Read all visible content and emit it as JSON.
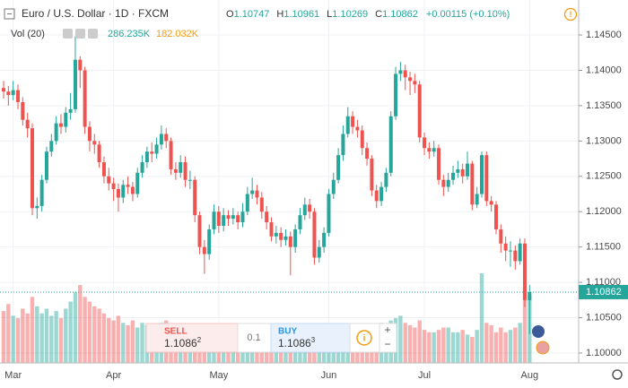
{
  "header": {
    "symbol": "Euro / U.S. Dollar · 1D · FXCM",
    "ohlc_prefixes": [
      "O",
      "H",
      "L",
      "C"
    ],
    "change": "+0.00115 (+0.10%)",
    "volume_title": "Vol (20)",
    "volume_label": "286.235K",
    "volume_ma_label": "182.032K"
  },
  "trade_panel": {
    "sell": "SELL",
    "sell_price": "1.1086",
    "sell_sup": "2",
    "spread": "0.1",
    "buy": "BUY",
    "buy_price": "1.1086",
    "buy_sup": "3"
  },
  "chart_data": {
    "type": "candlestick",
    "up_color": "#26a69a",
    "down_color": "#ef5350",
    "grid": true,
    "categories": [
      null,
      null,
      "Mar",
      null,
      null,
      null,
      null,
      null,
      null,
      null,
      null,
      null,
      null,
      null,
      null,
      null,
      null,
      null,
      null,
      null,
      null,
      null,
      null,
      "Apr",
      null,
      null,
      null,
      null,
      null,
      null,
      null,
      null,
      null,
      null,
      null,
      null,
      null,
      null,
      null,
      null,
      null,
      null,
      null,
      null,
      null,
      "May",
      null,
      null,
      null,
      null,
      null,
      null,
      null,
      null,
      null,
      null,
      null,
      null,
      null,
      null,
      null,
      null,
      null,
      null,
      null,
      null,
      null,
      null,
      "Jun",
      null,
      null,
      null,
      null,
      null,
      null,
      null,
      null,
      null,
      null,
      null,
      null,
      null,
      null,
      null,
      null,
      null,
      null,
      null,
      "Jul",
      null,
      null,
      null,
      null,
      null,
      null,
      null,
      null,
      null,
      null,
      null,
      null,
      null,
      null,
      null,
      null,
      null,
      null,
      null,
      null,
      null,
      "Aug"
    ],
    "open": [
      1.1375,
      1.137,
      1.1365,
      1.1372,
      1.1355,
      1.133,
      1.1318,
      1.1205,
      1.1208,
      1.1245,
      1.1285,
      1.13,
      1.1325,
      1.132,
      1.134,
      1.1345,
      1.1415,
      1.14,
      1.132,
      1.13,
      1.1295,
      1.127,
      1.125,
      1.124,
      1.1232,
      1.122,
      1.1238,
      1.1235,
      1.1225,
      1.1255,
      1.127,
      1.1285,
      1.1282,
      1.1295,
      1.131,
      1.13,
      1.126,
      1.1255,
      1.127,
      1.1245,
      1.1245,
      1.1195,
      1.115,
      1.114,
      1.1175,
      1.12,
      1.118,
      1.1195,
      1.119,
      1.1195,
      1.1185,
      1.12,
      1.1225,
      1.123,
      1.122,
      1.12,
      1.1185,
      1.1165,
      1.117,
      1.116,
      1.1165,
      1.115,
      1.1175,
      1.1195,
      1.121,
      1.12,
      1.1135,
      1.115,
      1.117,
      1.1225,
      1.1245,
      1.128,
      1.131,
      1.1335,
      1.132,
      1.1315,
      1.129,
      1.1275,
      1.123,
      1.1215,
      1.1235,
      1.1255,
      1.1335,
      1.1395,
      1.14,
      1.139,
      1.1385,
      1.138,
      1.1305,
      1.129,
      1.1285,
      1.129,
      1.1245,
      1.1235,
      1.1245,
      1.1255,
      1.126,
      1.125,
      1.1268,
      1.121,
      1.1225,
      1.128,
      1.1215,
      1.121,
      1.1175,
      1.1155,
      1.1145,
      1.1145,
      1.113,
      1.1155,
      1.10747
    ],
    "high": [
      1.1385,
      1.1378,
      1.1385,
      1.138,
      1.1362,
      1.134,
      1.1325,
      1.122,
      1.1252,
      1.1292,
      1.131,
      1.1335,
      1.1338,
      1.1348,
      1.1368,
      1.1448,
      1.142,
      1.1405,
      1.1328,
      1.131,
      1.13,
      1.1278,
      1.1262,
      1.1248,
      1.124,
      1.1245,
      1.125,
      1.1242,
      1.1262,
      1.128,
      1.1292,
      1.1298,
      1.1305,
      1.1322,
      1.1318,
      1.1305,
      1.127,
      1.128,
      1.1278,
      1.1258,
      1.125,
      1.12,
      1.116,
      1.1182,
      1.121,
      1.1208,
      1.1205,
      1.1202,
      1.1205,
      1.12,
      1.1212,
      1.1235,
      1.1248,
      1.1238,
      1.1228,
      1.1208,
      1.1192,
      1.118,
      1.1178,
      1.1175,
      1.1172,
      1.1182,
      1.1205,
      1.122,
      1.1218,
      1.1205,
      1.116,
      1.1178,
      1.1232,
      1.1255,
      1.129,
      1.1322,
      1.1348,
      1.1342,
      1.133,
      1.1322,
      1.1298,
      1.128,
      1.1238,
      1.1242,
      1.1262,
      1.1342,
      1.1405,
      1.1412,
      1.1408,
      1.1398,
      1.1395,
      1.1385,
      1.1312,
      1.1298,
      1.13,
      1.1295,
      1.1252,
      1.1255,
      1.1265,
      1.1272,
      1.1268,
      1.1285,
      1.1272,
      1.1235,
      1.1285,
      1.1285,
      1.1222,
      1.1215,
      1.1182,
      1.1165,
      1.1158,
      1.1152,
      1.1162,
      1.1162,
      1.10961
    ],
    "low": [
      1.136,
      1.135,
      1.1358,
      1.1345,
      1.1322,
      1.1305,
      1.1195,
      1.119,
      1.12,
      1.124,
      1.1278,
      1.1295,
      1.131,
      1.1312,
      1.133,
      1.134,
      1.1375,
      1.131,
      1.1285,
      1.1282,
      1.1262,
      1.124,
      1.123,
      1.1215,
      1.12,
      1.1212,
      1.1225,
      1.1215,
      1.122,
      1.1248,
      1.1262,
      1.127,
      1.1275,
      1.1288,
      1.129,
      1.1252,
      1.1245,
      1.1248,
      1.1235,
      1.1232,
      1.1185,
      1.114,
      1.1112,
      1.1132,
      1.1168,
      1.117,
      1.1172,
      1.118,
      1.1182,
      1.1175,
      1.1178,
      1.1195,
      1.1218,
      1.121,
      1.119,
      1.1175,
      1.1158,
      1.1155,
      1.115,
      1.1152,
      1.111,
      1.1142,
      1.1168,
      1.1188,
      1.119,
      1.1125,
      1.1128,
      1.1142,
      1.1165,
      1.1218,
      1.124,
      1.1272,
      1.1305,
      1.131,
      1.1305,
      1.128,
      1.1265,
      1.1222,
      1.1205,
      1.1208,
      1.1228,
      1.125,
      1.133,
      1.1385,
      1.1372,
      1.1365,
      1.1368,
      1.1298,
      1.128,
      1.1275,
      1.1278,
      1.1238,
      1.1222,
      1.1228,
      1.1238,
      1.1248,
      1.124,
      1.1245,
      1.1202,
      1.1205,
      1.122,
      1.1208,
      1.12,
      1.1168,
      1.1142,
      1.113,
      1.1122,
      1.1118,
      1.1125,
      1.1065,
      1.10269
    ],
    "close": [
      1.137,
      1.1365,
      1.1372,
      1.1355,
      1.133,
      1.1318,
      1.1205,
      1.1208,
      1.1245,
      1.1285,
      1.13,
      1.1325,
      1.132,
      1.134,
      1.1345,
      1.1415,
      1.14,
      1.132,
      1.13,
      1.1295,
      1.127,
      1.125,
      1.124,
      1.1232,
      1.122,
      1.1238,
      1.1235,
      1.1225,
      1.1255,
      1.127,
      1.1285,
      1.1282,
      1.1295,
      1.131,
      1.13,
      1.126,
      1.1255,
      1.127,
      1.1245,
      1.1245,
      1.1195,
      1.115,
      1.114,
      1.1175,
      1.12,
      1.118,
      1.1195,
      1.119,
      1.1195,
      1.1185,
      1.12,
      1.1225,
      1.123,
      1.122,
      1.12,
      1.1185,
      1.1165,
      1.117,
      1.116,
      1.1165,
      1.115,
      1.1175,
      1.1195,
      1.121,
      1.12,
      1.1135,
      1.115,
      1.117,
      1.1225,
      1.1245,
      1.128,
      1.131,
      1.1335,
      1.132,
      1.1315,
      1.129,
      1.1275,
      1.123,
      1.1215,
      1.1235,
      1.1255,
      1.1335,
      1.1395,
      1.14,
      1.139,
      1.1385,
      1.138,
      1.1305,
      1.129,
      1.1285,
      1.129,
      1.1245,
      1.1235,
      1.1245,
      1.1255,
      1.126,
      1.125,
      1.1268,
      1.121,
      1.1225,
      1.128,
      1.1215,
      1.121,
      1.1175,
      1.1155,
      1.1145,
      1.1145,
      1.113,
      1.1155,
      1.1075,
      1.10862
    ],
    "volume": [
      220,
      250,
      200,
      190,
      230,
      210,
      280,
      240,
      210,
      230,
      200,
      220,
      190,
      230,
      260,
      300,
      330,
      280,
      260,
      240,
      230,
      210,
      190,
      180,
      200,
      170,
      160,
      180,
      150,
      170,
      160,
      150,
      140,
      170,
      180,
      160,
      150,
      140,
      130,
      120,
      150,
      140,
      130,
      120,
      110,
      100,
      120,
      110,
      100,
      130,
      120,
      140,
      110,
      120,
      100,
      90,
      110,
      100,
      90,
      100,
      110,
      120,
      100,
      110,
      130,
      140,
      120,
      100,
      150,
      160,
      130,
      140,
      150,
      120,
      130,
      140,
      120,
      110,
      150,
      170,
      160,
      180,
      190,
      200,
      170,
      160,
      150,
      180,
      140,
      130,
      130,
      140,
      150,
      150,
      130,
      130,
      140,
      120,
      110,
      140,
      380,
      170,
      160,
      130,
      150,
      130,
      140,
      150,
      170,
      320,
      286.235
    ],
    "ylim": [
      1.0986,
      1.14995
    ],
    "yticks": [
      {
        "value": 1.1,
        "label": "1.10000"
      },
      {
        "value": 1.105,
        "label": "1.10500"
      },
      {
        "value": 1.11,
        "label": "1.11000"
      },
      {
        "value": 1.115,
        "label": "1.11500"
      },
      {
        "value": 1.12,
        "label": "1.12000"
      },
      {
        "value": 1.125,
        "label": "1.12500"
      },
      {
        "value": 1.13,
        "label": "1.13000"
      },
      {
        "value": 1.135,
        "label": "1.13500"
      },
      {
        "value": 1.14,
        "label": "1.14000"
      },
      {
        "value": 1.145,
        "label": "1.14500"
      }
    ]
  }
}
